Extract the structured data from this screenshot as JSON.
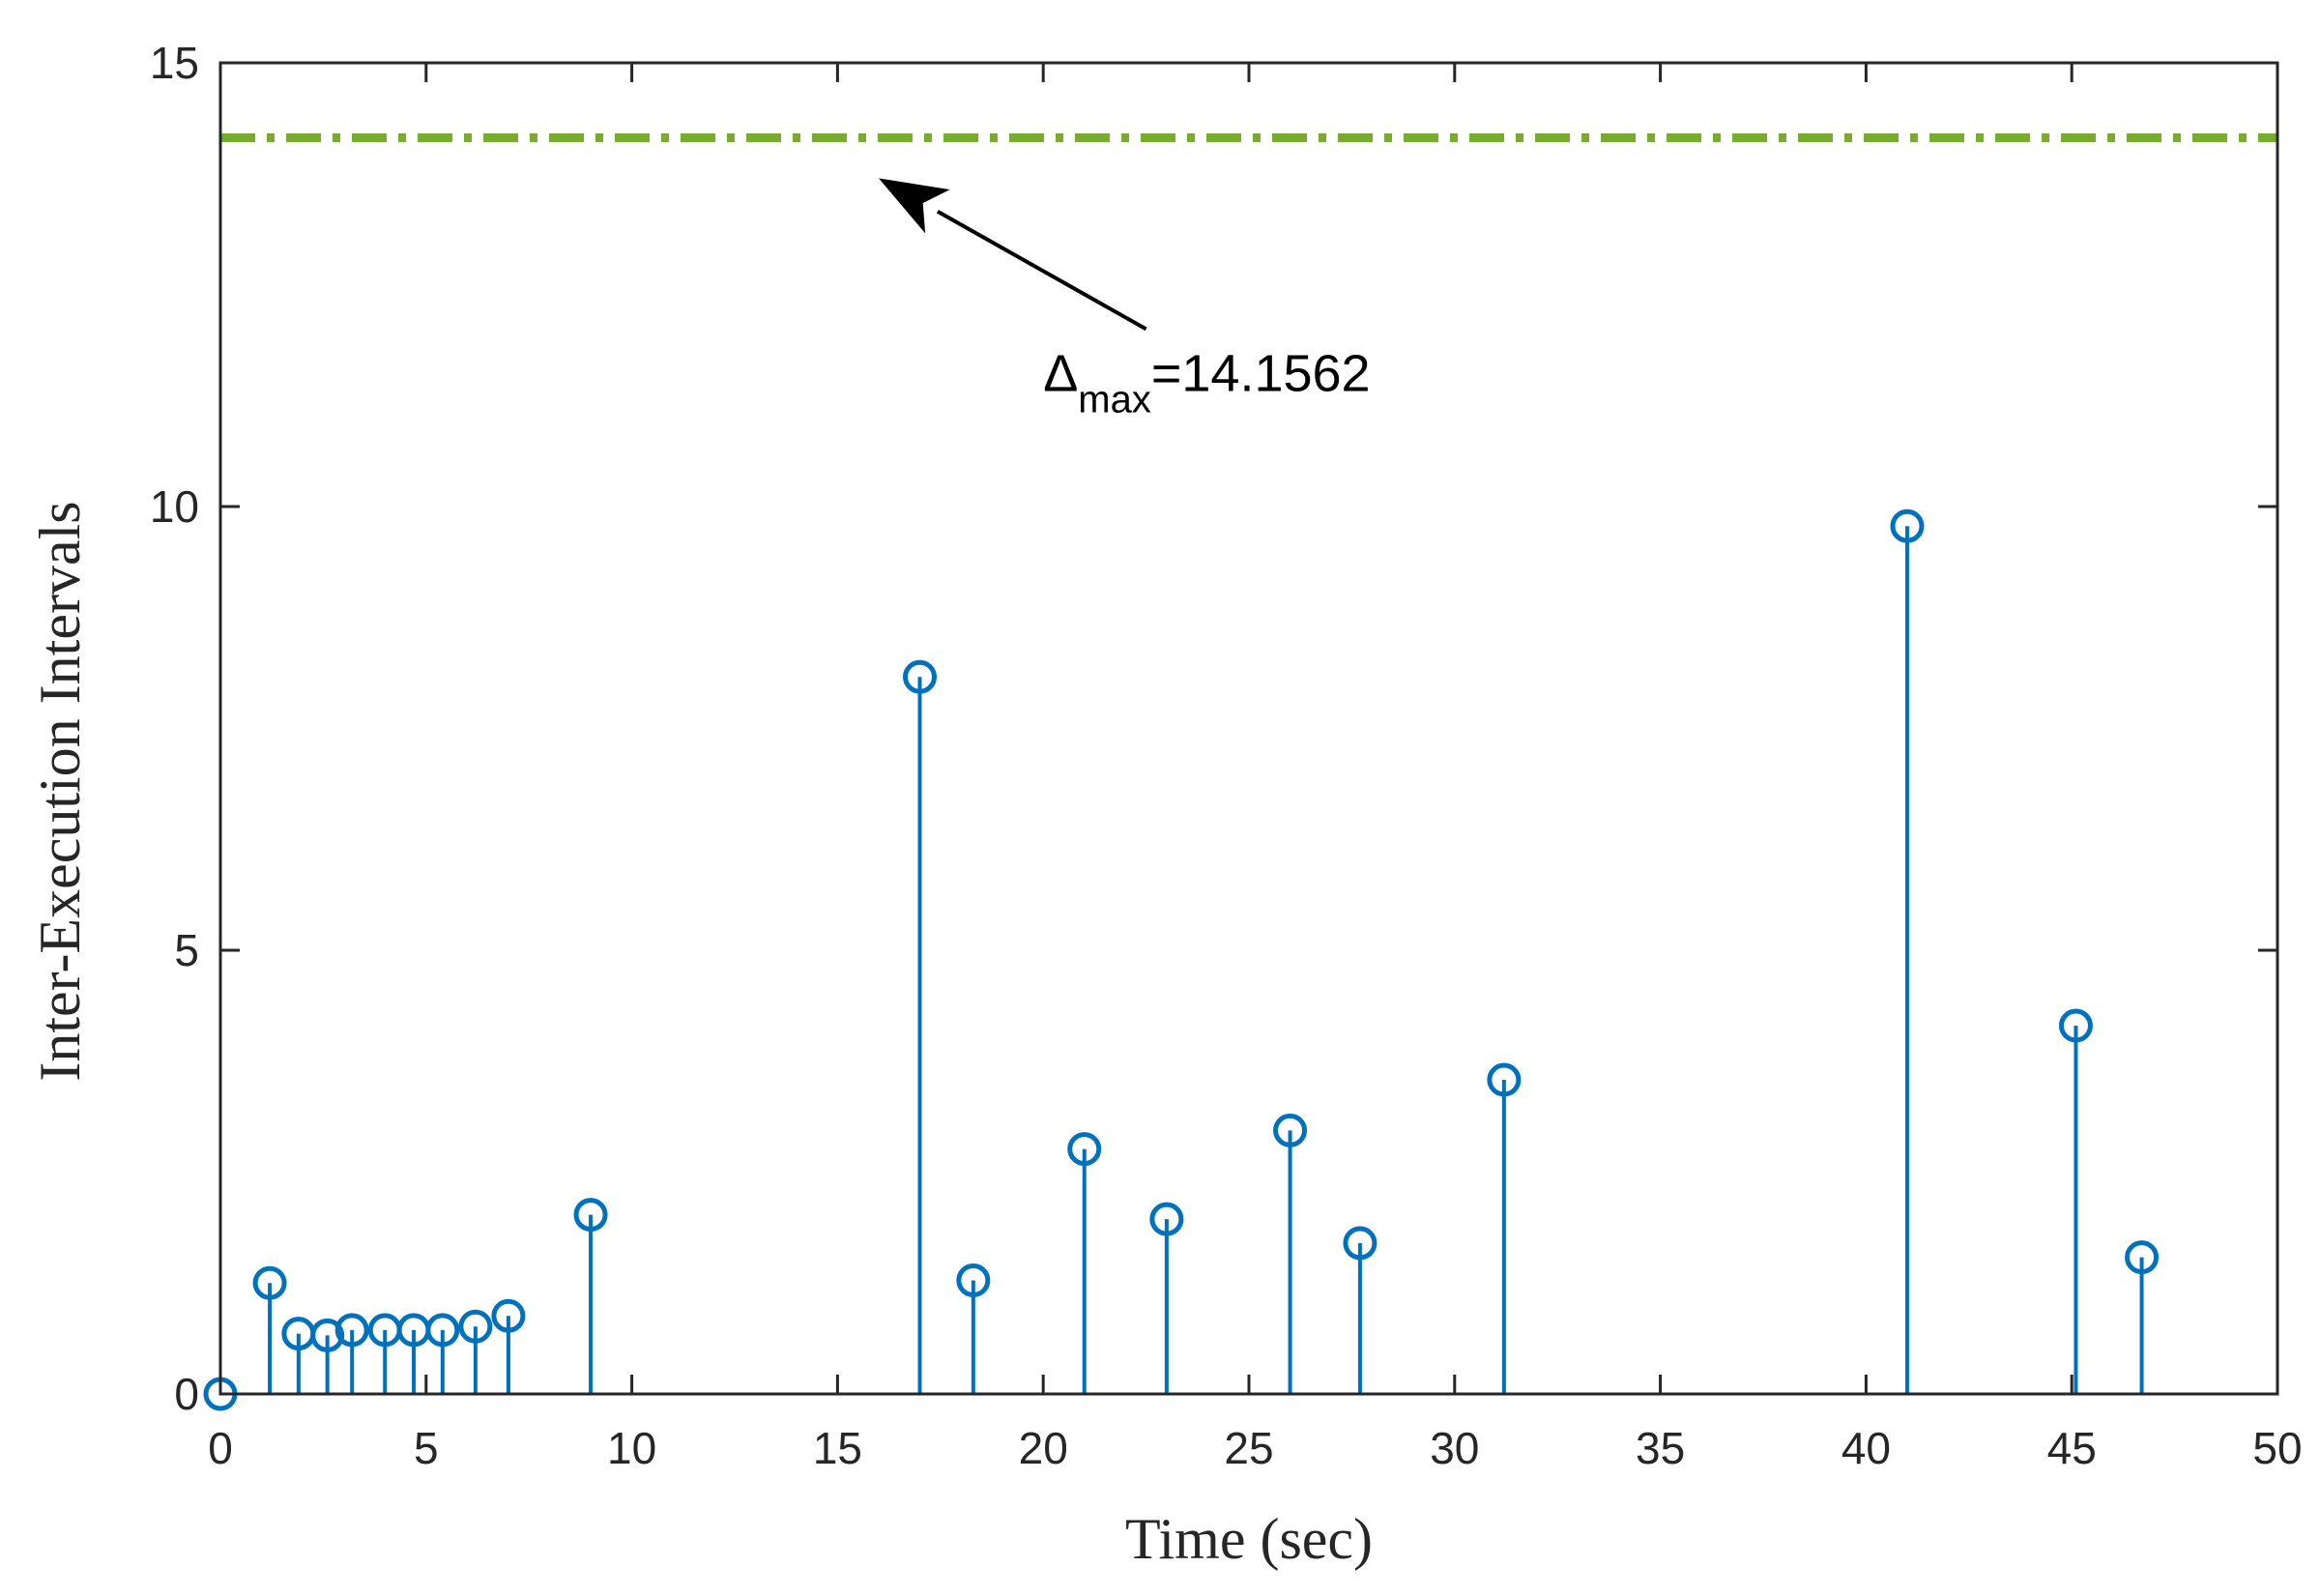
{
  "chart_data": {
    "type": "stem",
    "xlabel": "Time (sec)",
    "ylabel": "Inter-Execution Intervals",
    "xlim": [
      0,
      50
    ],
    "ylim": [
      0,
      15
    ],
    "xticks": [
      0,
      5,
      10,
      15,
      20,
      25,
      30,
      35,
      40,
      45,
      50
    ],
    "yticks": [
      0,
      5,
      10,
      15
    ],
    "grid": false,
    "stem_color": "#0072BD",
    "series": [
      {
        "x": [
          0,
          1.2,
          1.9,
          2.6,
          3.2,
          4.0,
          4.7,
          5.4,
          6.2,
          7.0,
          9.0,
          17.0,
          18.3,
          21.0,
          23.0,
          26.0,
          27.7,
          31.2,
          41.0,
          45.1,
          46.7
        ],
        "y": [
          0,
          1.25,
          0.68,
          0.66,
          0.72,
          0.72,
          0.72,
          0.72,
          0.76,
          0.88,
          2.02,
          8.08,
          1.28,
          2.76,
          1.97,
          2.97,
          1.7,
          3.54,
          9.78,
          4.15,
          1.54
        ]
      }
    ],
    "reference_line": {
      "y": 14.1562,
      "color": "#77AC30",
      "style": "dash-dot"
    },
    "annotation": {
      "symbol": "Δ",
      "subscript": "max",
      "text": "=14.1562",
      "arrow_to": [
        16.0,
        13.7
      ],
      "arrow_from": [
        22.5,
        12.0
      ],
      "label_at": [
        20.0,
        11.3
      ]
    }
  }
}
